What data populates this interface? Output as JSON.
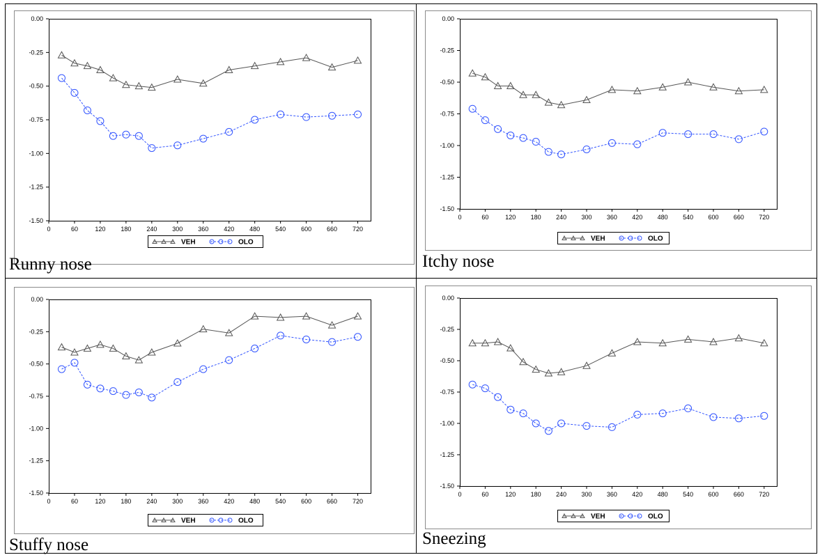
{
  "chart_data": [
    {
      "type": "line",
      "caption": "Runny nose",
      "x": [
        30,
        60,
        90,
        120,
        150,
        180,
        210,
        240,
        300,
        360,
        420,
        480,
        540,
        600,
        660,
        720
      ],
      "x_ticks": [
        0,
        60,
        120,
        180,
        240,
        300,
        360,
        420,
        480,
        540,
        600,
        660,
        720
      ],
      "y_ticks": [
        0.0,
        -0.25,
        -0.5,
        -0.75,
        -1.0,
        -1.25,
        -1.5
      ],
      "xlim": [
        0,
        750
      ],
      "ylim": [
        -1.5,
        0.0
      ],
      "series": [
        {
          "name": "VEH",
          "marker": "triangle",
          "color": "#555555",
          "values": [
            -0.27,
            -0.33,
            -0.35,
            -0.38,
            -0.44,
            -0.49,
            -0.5,
            -0.51,
            -0.45,
            -0.48,
            -0.38,
            -0.35,
            -0.32,
            -0.29,
            -0.36,
            -0.31
          ]
        },
        {
          "name": "OLO",
          "marker": "circle",
          "color": "#3355ff",
          "values": [
            -0.44,
            -0.55,
            -0.68,
            -0.76,
            -0.87,
            -0.86,
            -0.87,
            -0.96,
            -0.94,
            -0.89,
            -0.84,
            -0.75,
            -0.71,
            -0.73,
            -0.72,
            -0.71
          ]
        }
      ],
      "grid": false,
      "legend": "bottom"
    },
    {
      "type": "line",
      "caption": "Itchy nose",
      "x": [
        30,
        60,
        90,
        120,
        150,
        180,
        210,
        240,
        300,
        360,
        420,
        480,
        540,
        600,
        660,
        720
      ],
      "x_ticks": [
        0,
        60,
        120,
        180,
        240,
        300,
        360,
        420,
        480,
        540,
        600,
        660,
        720
      ],
      "y_ticks": [
        0.0,
        -0.25,
        -0.5,
        -0.75,
        -1.0,
        -1.25,
        -1.5
      ],
      "xlim": [
        0,
        750
      ],
      "ylim": [
        -1.5,
        0.0
      ],
      "series": [
        {
          "name": "VEH",
          "marker": "triangle",
          "color": "#555555",
          "values": [
            -0.43,
            -0.46,
            -0.53,
            -0.53,
            -0.6,
            -0.6,
            -0.66,
            -0.68,
            -0.64,
            -0.56,
            -0.57,
            -0.54,
            -0.5,
            -0.54,
            -0.57,
            -0.56
          ]
        },
        {
          "name": "OLO",
          "marker": "circle",
          "color": "#3355ff",
          "values": [
            -0.71,
            -0.8,
            -0.87,
            -0.92,
            -0.94,
            -0.97,
            -1.05,
            -1.07,
            -1.03,
            -0.98,
            -0.99,
            -0.9,
            -0.91,
            -0.91,
            -0.95,
            -0.89
          ]
        }
      ],
      "grid": false,
      "legend": "bottom"
    },
    {
      "type": "line",
      "caption": "Stuffy nose",
      "x": [
        30,
        60,
        90,
        120,
        150,
        180,
        210,
        240,
        300,
        360,
        420,
        480,
        540,
        600,
        660,
        720
      ],
      "x_ticks": [
        0,
        60,
        120,
        180,
        240,
        300,
        360,
        420,
        480,
        540,
        600,
        660,
        720
      ],
      "y_ticks": [
        0.0,
        -0.25,
        -0.5,
        -0.75,
        -1.0,
        -1.25,
        -1.5
      ],
      "xlim": [
        0,
        750
      ],
      "ylim": [
        -1.5,
        0.0
      ],
      "series": [
        {
          "name": "VEH",
          "marker": "triangle",
          "color": "#555555",
          "values": [
            -0.37,
            -0.41,
            -0.38,
            -0.35,
            -0.38,
            -0.44,
            -0.47,
            -0.41,
            -0.34,
            -0.23,
            -0.26,
            -0.13,
            -0.14,
            -0.13,
            -0.2,
            -0.13
          ]
        },
        {
          "name": "OLO",
          "marker": "circle",
          "color": "#3355ff",
          "values": [
            -0.54,
            -0.49,
            -0.66,
            -0.69,
            -0.71,
            -0.74,
            -0.72,
            -0.76,
            -0.64,
            -0.54,
            -0.47,
            -0.38,
            -0.28,
            -0.31,
            -0.33,
            -0.29
          ]
        }
      ],
      "grid": false,
      "legend": "bottom"
    },
    {
      "type": "line",
      "caption": "Sneezing",
      "x": [
        30,
        60,
        90,
        120,
        150,
        180,
        210,
        240,
        300,
        360,
        420,
        480,
        540,
        600,
        660,
        720
      ],
      "x_ticks": [
        0,
        60,
        120,
        180,
        240,
        300,
        360,
        420,
        480,
        540,
        600,
        660,
        720
      ],
      "y_ticks": [
        0.0,
        -0.25,
        -0.5,
        -0.75,
        -1.0,
        -1.25,
        -1.5
      ],
      "xlim": [
        0,
        750
      ],
      "ylim": [
        -1.5,
        0.0
      ],
      "series": [
        {
          "name": "VEH",
          "marker": "triangle",
          "color": "#555555",
          "values": [
            -0.36,
            -0.36,
            -0.35,
            -0.4,
            -0.51,
            -0.57,
            -0.6,
            -0.59,
            -0.54,
            -0.44,
            -0.35,
            -0.36,
            -0.33,
            -0.35,
            -0.32,
            -0.36
          ]
        },
        {
          "name": "OLO",
          "marker": "circle",
          "color": "#3355ff",
          "values": [
            -0.69,
            -0.72,
            -0.79,
            -0.89,
            -0.92,
            -1.0,
            -1.06,
            -1.0,
            -1.02,
            -1.03,
            -0.93,
            -0.92,
            -0.88,
            -0.95,
            -0.96,
            -0.94
          ]
        }
      ],
      "grid": false,
      "legend": "bottom"
    }
  ]
}
